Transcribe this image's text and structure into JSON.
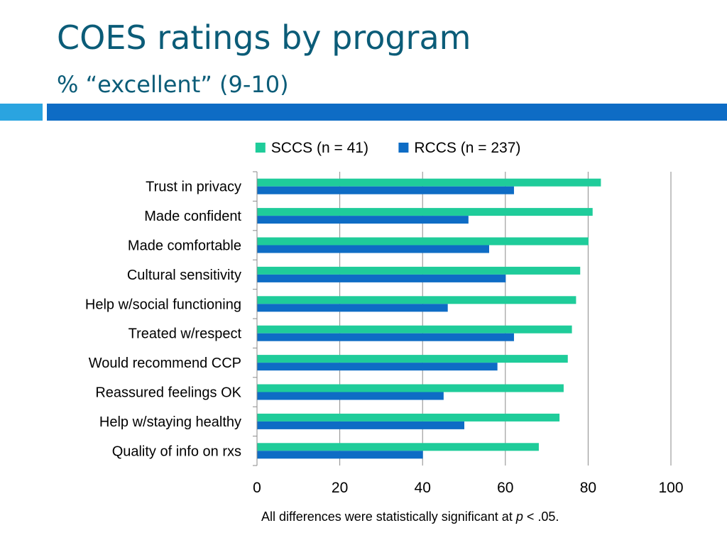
{
  "header": {
    "title": "COES ratings by program",
    "subtitle": "% “excellent” (9-10)"
  },
  "footnote": {
    "before": "All differences were statistically significant at ",
    "symbol": "p",
    "after": " < .05."
  },
  "colors": {
    "title": "#0b5c78",
    "accent_light": "#2aa4e0",
    "accent_dark": "#0e6cc5"
  },
  "chart_data": {
    "type": "bar",
    "orientation": "horizontal",
    "categories": [
      "Trust in privacy",
      "Made confident",
      "Made comfortable",
      "Cultural sensitivity",
      "Help w/social functioning",
      "Treated w/respect",
      "Would recommend CCP",
      "Reassured feelings OK",
      "Help w/staying healthy",
      "Quality of info on rxs"
    ],
    "series": [
      {
        "name": "SCCS (n = 41)",
        "color": "#1fcc9a",
        "values": [
          83,
          81,
          80,
          78,
          77,
          76,
          75,
          74,
          73,
          68
        ]
      },
      {
        "name": "RCCS (n = 237)",
        "color": "#0e6cc5",
        "values": [
          62,
          51,
          56,
          60,
          46,
          62,
          58,
          45,
          50,
          40
        ]
      }
    ],
    "xlim": [
      0,
      100
    ],
    "xticks": [
      0,
      20,
      40,
      60,
      80,
      100
    ],
    "grid": true,
    "legend": "top"
  }
}
